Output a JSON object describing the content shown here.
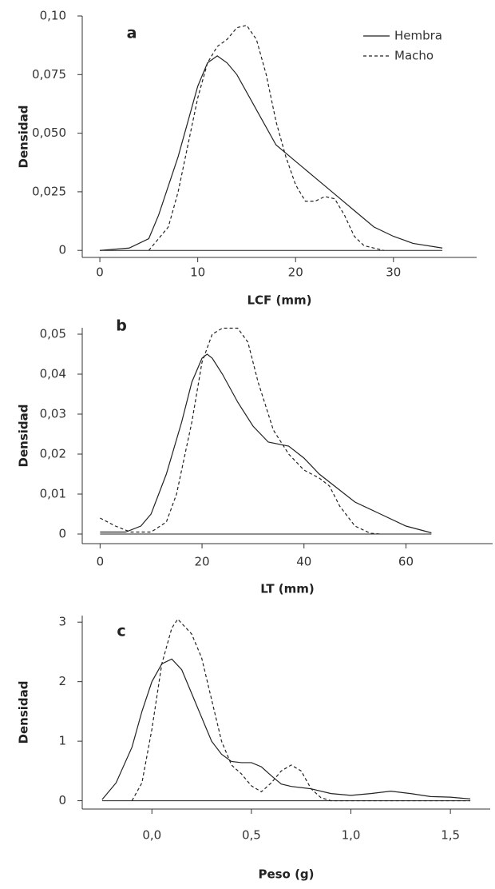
{
  "chart_data": [
    {
      "type": "line",
      "annotation": "a",
      "xlabel": "LCF (mm)",
      "ylabel": "Densidad",
      "legend": "upper right",
      "xlim": [
        -1.8,
        38.5
      ],
      "xticks": [
        0,
        10,
        20,
        30
      ],
      "ylim": [
        -0.003,
        0.1
      ],
      "yticks": [
        0,
        {
          "value": 0.025,
          "label": "0,025"
        },
        {
          "value": 0.05,
          "label": "0,050"
        },
        {
          "value": 0.075,
          "label": "0,075"
        },
        {
          "value": 0.1,
          "label": "0,10"
        }
      ],
      "series": [
        {
          "name": "Hembra",
          "color": "#222222",
          "dashed": false,
          "x": [
            0,
            3,
            5,
            6,
            8,
            10,
            11,
            12,
            13,
            14,
            16,
            18,
            20,
            22,
            24,
            26,
            28,
            30,
            32,
            35
          ],
          "values": [
            0,
            0.001,
            0.005,
            0.015,
            0.04,
            0.07,
            0.08,
            0.083,
            0.08,
            0.075,
            0.06,
            0.045,
            0.038,
            0.031,
            0.024,
            0.017,
            0.01,
            0.006,
            0.003,
            0.001
          ]
        },
        {
          "name": "Macho",
          "color": "#222222",
          "dashed": true,
          "x": [
            5,
            7,
            8,
            9,
            10,
            11,
            12,
            13,
            14,
            15,
            16,
            17,
            18,
            19,
            20,
            21,
            22,
            23,
            24,
            25,
            26,
            27,
            29
          ],
          "values": [
            0,
            0.01,
            0.025,
            0.045,
            0.065,
            0.08,
            0.087,
            0.09,
            0.095,
            0.096,
            0.09,
            0.075,
            0.055,
            0.04,
            0.028,
            0.021,
            0.021,
            0.023,
            0.022,
            0.015,
            0.006,
            0.002,
            0
          ]
        }
      ]
    },
    {
      "type": "line",
      "annotation": "b",
      "xlabel": "LT (mm)",
      "ylabel": "Densidad",
      "xlim": [
        -3.5,
        77
      ],
      "xticks": [
        0,
        20,
        40,
        60
      ],
      "ylim": [
        -0.0024,
        0.0516
      ],
      "yticks": [
        0,
        {
          "value": 0.01,
          "label": "0,01"
        },
        {
          "value": 0.02,
          "label": "0,02"
        },
        {
          "value": 0.03,
          "label": "0,03"
        },
        {
          "value": 0.04,
          "label": "0,04"
        },
        {
          "value": 0.05,
          "label": "0,05"
        }
      ],
      "series": [
        {
          "color": "#222222",
          "dashed": false,
          "x": [
            0,
            5,
            8,
            10,
            13,
            16,
            18,
            20,
            21,
            22,
            24,
            27,
            30,
            33,
            37,
            40,
            43,
            47,
            50,
            55,
            60,
            65
          ],
          "values": [
            0.0005,
            0.0005,
            0.002,
            0.005,
            0.015,
            0.028,
            0.038,
            0.044,
            0.045,
            0.044,
            0.04,
            0.033,
            0.027,
            0.023,
            0.022,
            0.019,
            0.015,
            0.011,
            0.008,
            0.005,
            0.002,
            0.0003
          ]
        },
        {
          "color": "#222222",
          "dashed": true,
          "x": [
            0,
            3,
            6,
            10,
            13,
            15,
            18,
            20,
            22,
            24,
            27,
            29,
            31,
            34,
            37,
            40,
            43,
            45,
            47,
            50,
            53,
            55
          ],
          "values": [
            0.004,
            0.002,
            0.0005,
            0.0005,
            0.003,
            0.01,
            0.028,
            0.043,
            0.05,
            0.0515,
            0.0515,
            0.048,
            0.038,
            0.026,
            0.02,
            0.016,
            0.014,
            0.012,
            0.007,
            0.002,
            0.0002,
            0
          ]
        }
      ]
    },
    {
      "type": "line",
      "annotation": "c",
      "xlabel": "Peso (g)",
      "ylabel": "Densidad",
      "xlim": [
        -0.35,
        1.7
      ],
      "xticks": [
        {
          "value": 0,
          "label": "0,0"
        },
        {
          "value": 0.5,
          "label": "0,5"
        },
        {
          "value": 1,
          "label": "1,0"
        },
        {
          "value": 1.5,
          "label": "1,5"
        }
      ],
      "ylim": [
        -0.14,
        3.11
      ],
      "yticks": [
        0,
        1,
        2,
        3
      ],
      "series": [
        {
          "color": "#222222",
          "dashed": false,
          "x": [
            -0.25,
            -0.18,
            -0.1,
            -0.05,
            0,
            0.05,
            0.1,
            0.15,
            0.2,
            0.25,
            0.3,
            0.35,
            0.4,
            0.45,
            0.5,
            0.55,
            0.6,
            0.65,
            0.7,
            0.8,
            0.9,
            1.0,
            1.1,
            1.2,
            1.3,
            1.4,
            1.5,
            1.6
          ],
          "values": [
            0.02,
            0.3,
            0.9,
            1.5,
            2.0,
            2.3,
            2.38,
            2.2,
            1.8,
            1.4,
            1.0,
            0.78,
            0.66,
            0.64,
            0.64,
            0.57,
            0.42,
            0.28,
            0.24,
            0.2,
            0.12,
            0.09,
            0.12,
            0.16,
            0.12,
            0.07,
            0.06,
            0.03
          ]
        },
        {
          "color": "#222222",
          "dashed": true,
          "x": [
            -0.1,
            -0.05,
            0,
            0.05,
            0.1,
            0.13,
            0.2,
            0.25,
            0.3,
            0.35,
            0.4,
            0.45,
            0.5,
            0.55,
            0.6,
            0.65,
            0.7,
            0.75,
            0.8,
            0.85,
            0.9,
            1.6
          ],
          "values": [
            0,
            0.3,
            1.2,
            2.3,
            2.9,
            3.05,
            2.8,
            2.4,
            1.7,
            1.0,
            0.6,
            0.45,
            0.25,
            0.15,
            0.3,
            0.5,
            0.6,
            0.5,
            0.2,
            0.05,
            0,
            0
          ]
        }
      ]
    }
  ]
}
